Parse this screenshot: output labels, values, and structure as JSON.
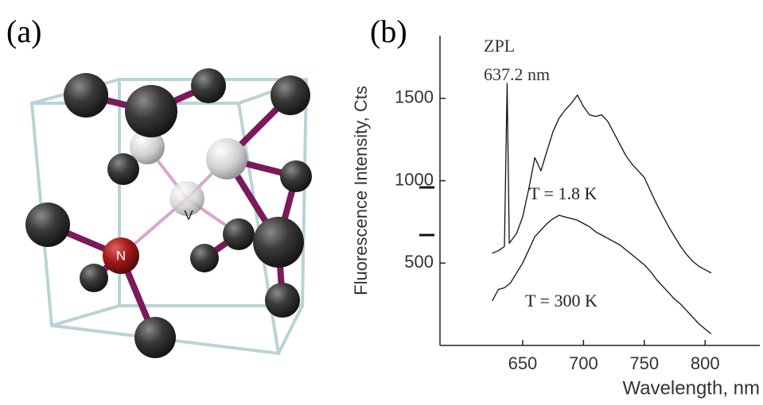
{
  "panel_a": {
    "label": "(a)",
    "nitrogen_label": "N",
    "vacancy_label": "V"
  },
  "chart_data": {
    "type": "line",
    "panel_label": "(b)",
    "xlabel": "Wavelength, nm",
    "ylabel": "Fluorescence Intensity, Cts",
    "annotations": [
      "ZPL",
      "637.2 nm",
      "T = 1.8 K",
      "T = 300 K"
    ],
    "xlim": [
      582,
      845
    ],
    "ylim": [
      0,
      1880
    ],
    "xticks": [
      650,
      700,
      750,
      800
    ],
    "yticks": [
      500,
      1000,
      1500
    ],
    "grid": false,
    "series": [
      {
        "color": "#111111",
        "x": [
          625,
          630,
          635,
          637.2,
          639,
          645,
          650,
          655,
          660,
          665,
          670,
          675,
          680,
          685,
          690,
          695,
          700,
          705,
          710,
          715,
          720,
          725,
          730,
          735,
          740,
          745,
          750,
          755,
          760,
          765,
          770,
          775,
          780,
          785,
          790,
          795,
          800,
          805
        ],
        "values": [
          560,
          575,
          600,
          1590,
          620,
          680,
          780,
          950,
          1140,
          1060,
          1180,
          1300,
          1380,
          1430,
          1470,
          1520,
          1450,
          1400,
          1390,
          1400,
          1360,
          1290,
          1220,
          1150,
          1100,
          1060,
          1020,
          940,
          860,
          790,
          720,
          660,
          600,
          550,
          510,
          480,
          460,
          440
        ]
      },
      {
        "color": "#111111",
        "x": [
          625,
          630,
          635,
          640,
          645,
          650,
          655,
          660,
          665,
          670,
          675,
          680,
          685,
          690,
          695,
          700,
          705,
          710,
          715,
          720,
          725,
          730,
          735,
          740,
          745,
          750,
          755,
          760,
          765,
          770,
          775,
          780,
          785,
          790,
          795,
          800,
          805
        ],
        "values": [
          270,
          340,
          350,
          380,
          440,
          500,
          580,
          660,
          700,
          740,
          770,
          790,
          780,
          770,
          760,
          740,
          720,
          690,
          670,
          650,
          630,
          610,
          580,
          550,
          520,
          490,
          450,
          400,
          360,
          320,
          280,
          250,
          210,
          170,
          130,
          100,
          70
        ]
      }
    ]
  }
}
